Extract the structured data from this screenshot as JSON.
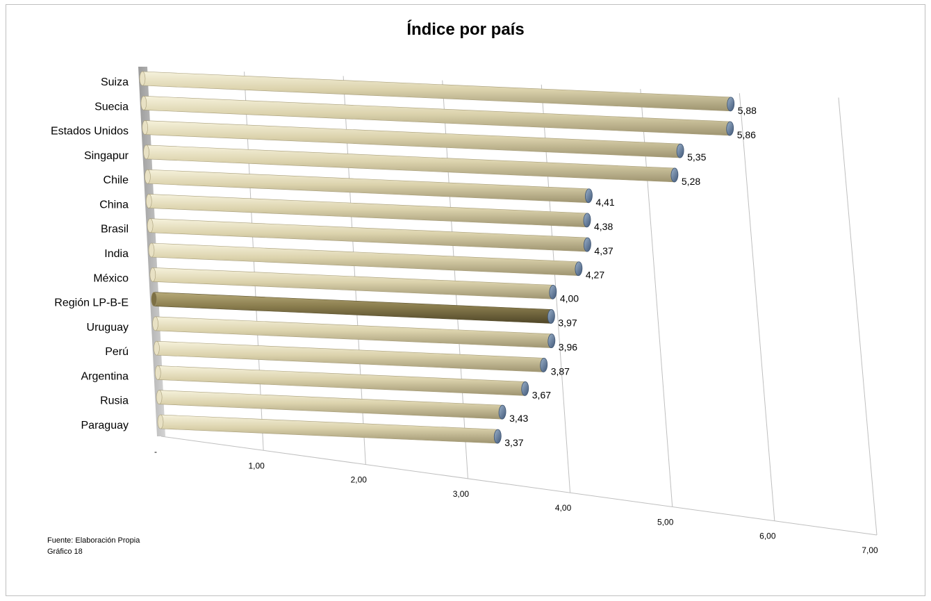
{
  "chart_data": {
    "type": "bar",
    "orientation": "horizontal",
    "three_d": true,
    "title": "Índice por país",
    "categories": [
      "Suiza",
      "Suecia",
      "Estados Unidos",
      "Singapur",
      "Chile",
      "China",
      "Brasil",
      "India",
      "México",
      "Región LP-B-E",
      "Uruguay",
      "Perú",
      "Argentina",
      "Rusia",
      "Paraguay"
    ],
    "values": [
      5.88,
      5.86,
      5.35,
      5.28,
      4.41,
      4.38,
      4.37,
      4.27,
      4.0,
      3.97,
      3.96,
      3.87,
      3.67,
      3.43,
      3.37
    ],
    "value_labels": [
      "5,88",
      "5,86",
      "5,35",
      "5,28",
      "4,41",
      "4,38",
      "4,37",
      "4,27",
      "4,00",
      "3,97",
      "3,96",
      "3,87",
      "3,67",
      "3,43",
      "3,37"
    ],
    "highlight_category": "Región LP-B-E",
    "xlim": [
      0,
      7
    ],
    "xticks": [
      "-",
      "1,00",
      "2,00",
      "3,00",
      "4,00",
      "5,00",
      "6,00",
      "7,00"
    ],
    "grid": true,
    "legend": "none"
  },
  "colors": {
    "bar": "#ddd5b0",
    "bar_highlight": "#8a7d4e",
    "end_cap": "#6b87a8",
    "back_wall": "#b9b9b9",
    "grid": "#bfbfbf"
  },
  "source_note": {
    "line1": "Fuente: Elaboración Propia",
    "line2": "Gráfico  18"
  }
}
